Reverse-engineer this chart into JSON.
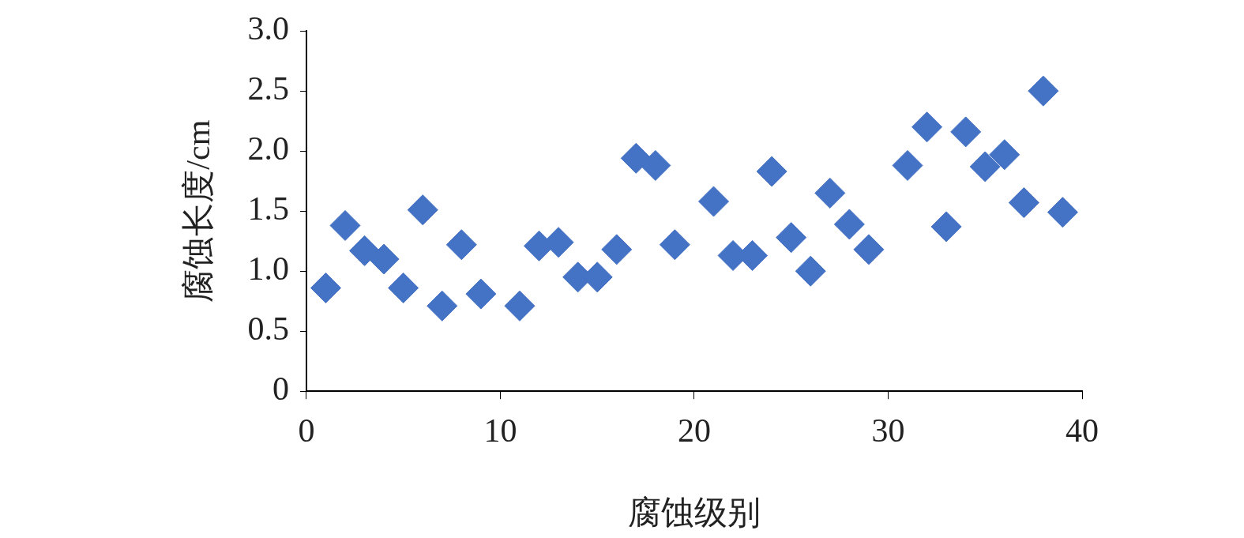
{
  "chart_data": {
    "type": "scatter",
    "xlabel": "腐蚀级别",
    "ylabel": "腐蚀长度/cm",
    "x": [
      1,
      2,
      3,
      4,
      5,
      6,
      7,
      8,
      9,
      11,
      12,
      13,
      14,
      15,
      16,
      17,
      18,
      19,
      21,
      22,
      23,
      24,
      25,
      26,
      27,
      28,
      29,
      31,
      32,
      33,
      34,
      35,
      36,
      37,
      38,
      39
    ],
    "series": [
      {
        "color": "#4472c4",
        "values": [
          0.86,
          1.38,
          1.17,
          1.1,
          0.86,
          1.51,
          0.71,
          1.22,
          0.81,
          0.71,
          1.21,
          1.24,
          0.95,
          0.95,
          1.18,
          1.94,
          1.88,
          1.22,
          1.58,
          1.13,
          1.13,
          1.83,
          1.28,
          1.0,
          1.65,
          1.39,
          1.18,
          1.88,
          2.2,
          1.37,
          2.16,
          1.87,
          1.97,
          1.57,
          2.5,
          1.49
        ]
      }
    ],
    "xlim": [
      0,
      40
    ],
    "xticks": [
      0,
      10,
      20,
      30,
      40
    ],
    "ylim": [
      0,
      3
    ],
    "yticks": [
      0,
      0.5,
      {
        "value": 1,
        "label": "1.0"
      },
      1.5,
      {
        "value": 2,
        "label": "2.0"
      },
      2.5,
      {
        "value": 3,
        "label": "3.0"
      }
    ],
    "marker": "diamond",
    "grid": false,
    "legend": false
  }
}
